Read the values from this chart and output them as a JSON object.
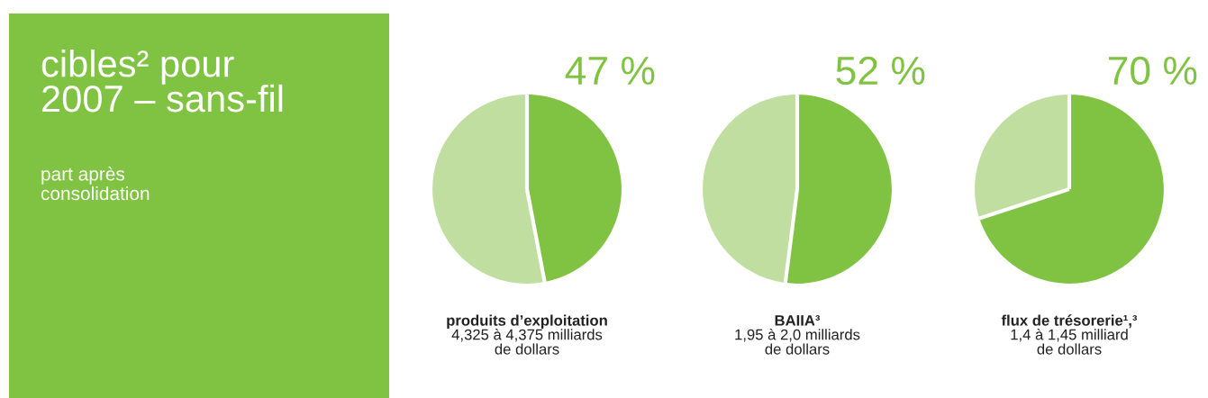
{
  "chart_data": [
    {
      "type": "other",
      "title": "cibles² pour\n2007 – sans-fil",
      "subtitle": "part après\nconsolidation",
      "color": "#80c342"
    },
    {
      "type": "pie",
      "title": "47 %",
      "categories": [
        null,
        null
      ],
      "values": [
        47,
        53
      ],
      "colors": [
        "#80c342",
        "#c0dea0"
      ],
      "annotations": [
        "produits d’exploitation",
        "4,325 à 4,375 milliards\nde dollars"
      ]
    },
    {
      "type": "pie",
      "title": "52 %",
      "categories": [
        null,
        null
      ],
      "values": [
        52,
        48
      ],
      "colors": [
        "#80c342",
        "#c0dea0"
      ],
      "annotations": [
        "BAIIA³",
        "1,95 à 2,0 milliards\nde dollars"
      ]
    },
    {
      "type": "pie",
      "title": "70 %",
      "categories": [
        null,
        null
      ],
      "values": [
        70,
        30
      ],
      "colors": [
        "#80c342",
        "#c0dea0"
      ],
      "annotations": [
        "flux de trésorerie¹,³",
        "1,4 à 1,45 milliard\nde dollars"
      ]
    }
  ]
}
